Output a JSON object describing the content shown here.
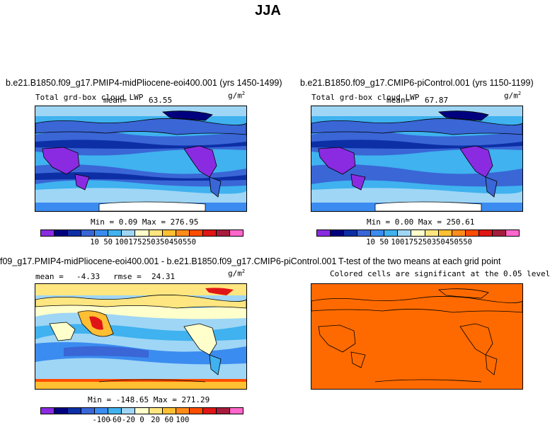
{
  "title": "JJA",
  "panels": [
    {
      "title": "b.e21.B1850.f09_g17.PMIP4-midPliocene-eoi400.001 (yrs 1450-1499)",
      "variable": "Total grd-box cloud LWP",
      "mean_label": "mean=",
      "mean_value": "63.55",
      "units": "g/m",
      "units_exp": "2",
      "minmax": "Min =    0.09  Max = 276.95",
      "colorbar_ticks": [
        "10",
        "50",
        "100",
        "175",
        "250",
        "350",
        "450",
        "550"
      ]
    },
    {
      "title": "b.e21.B1850.f09_g17.CMIP6-piControl.001 (yrs 1150-1199)",
      "variable": "Total grd-box cloud LWP",
      "mean_label": "mean=",
      "mean_value": "67.87",
      "units": "g/m",
      "units_exp": "2",
      "minmax": "Min =    0.00  Max = 250.61",
      "colorbar_ticks": [
        "10",
        "50",
        "100",
        "175",
        "250",
        "350",
        "450",
        "550"
      ]
    },
    {
      "title": "f09_g17.PMIP4-midPliocene-eoi400.001 - b.e21.B1850.f09_g17.CMIP6-piControl.001",
      "mean_label": "mean =",
      "mean_value": "-4.33",
      "rmse_label": "rmse =",
      "rmse_value": "24.31",
      "units": "g/m",
      "units_exp": "2",
      "minmax": "Min = -148.65  Max = 271.29",
      "colorbar_ticks": [
        "-100",
        "-60",
        "-20",
        "0",
        "20",
        "60",
        "100"
      ]
    },
    {
      "title": "T-test of the two means at each grid point",
      "subtitle": "Colored cells are significant at the 0.05 level",
      "fill_color": "#ff6a00"
    }
  ],
  "colormaps": {
    "lwp": [
      "#8a2be2",
      "#00007f",
      "#0d2fa6",
      "#3a66d6",
      "#3b8cf0",
      "#3fb2ef",
      "#9fd6f5",
      "#ffffcc",
      "#ffe680",
      "#ffbf33",
      "#ff8c1a",
      "#ff4d00",
      "#e01616",
      "#a61c3c",
      "#ff66cc"
    ],
    "diff": [
      "#8a2be2",
      "#00007f",
      "#0d2fa6",
      "#3a66d6",
      "#3b8cf0",
      "#3fb2ef",
      "#9fd6f5",
      "#ffffcc",
      "#ffe680",
      "#ffbf33",
      "#ff8c1a",
      "#ff4d00",
      "#e01616",
      "#a61c3c",
      "#ff66cc"
    ]
  }
}
